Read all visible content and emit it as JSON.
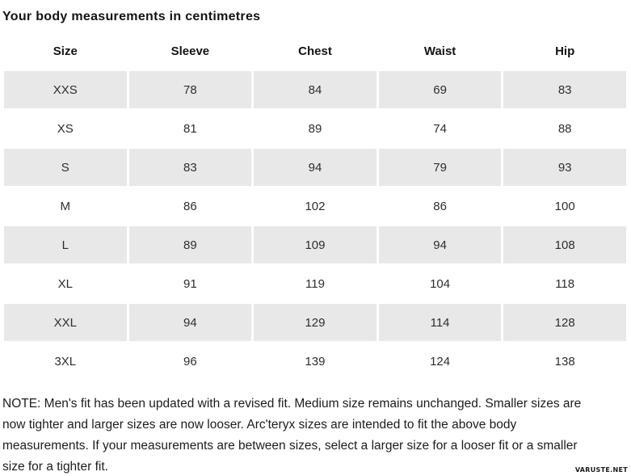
{
  "title": "Your body measurements in centimetres",
  "table": {
    "columns": [
      "Size",
      "Sleeve",
      "Chest",
      "Waist",
      "Hip"
    ],
    "stripe_color": "#e8e8e8",
    "rows": [
      {
        "size": "XXS",
        "sleeve": "78",
        "chest": "84",
        "waist": "69",
        "hip": "83"
      },
      {
        "size": "XS",
        "sleeve": "81",
        "chest": "89",
        "waist": "74",
        "hip": "88"
      },
      {
        "size": "S",
        "sleeve": "83",
        "chest": "94",
        "waist": "79",
        "hip": "93"
      },
      {
        "size": "M",
        "sleeve": "86",
        "chest": "102",
        "waist": "86",
        "hip": "100"
      },
      {
        "size": "L",
        "sleeve": "89",
        "chest": "109",
        "waist": "94",
        "hip": "108"
      },
      {
        "size": "XL",
        "sleeve": "91",
        "chest": "119",
        "waist": "104",
        "hip": "118"
      },
      {
        "size": "XXL",
        "sleeve": "94",
        "chest": "129",
        "waist": "114",
        "hip": "128"
      },
      {
        "size": "3XL",
        "sleeve": "96",
        "chest": "139",
        "waist": "124",
        "hip": "138"
      }
    ]
  },
  "note": {
    "lines": [
      "NOTE: Men's fit has been updated with a revised fit. Medium size remains unchanged. Smaller sizes are",
      "now tighter and larger sizes are now looser. Arc'teryx sizes are intended to fit the above body",
      "measurements. If your measurements are between sizes, select a larger size for a looser fit or a smaller",
      "size for a tighter fit."
    ]
  },
  "watermark": "VARUSTE.NET"
}
